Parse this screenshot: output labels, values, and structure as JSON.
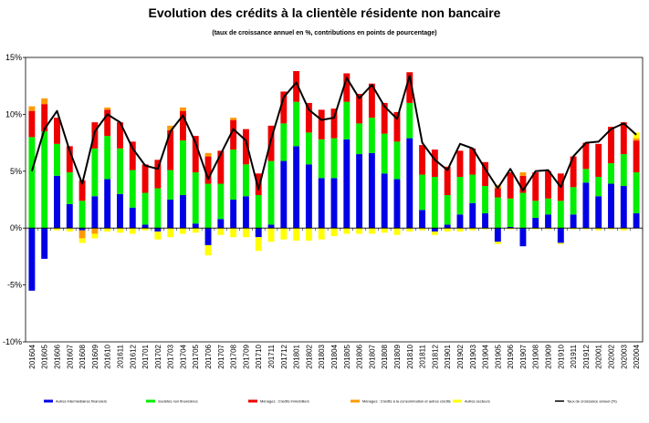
{
  "chart_data": {
    "type": "bar",
    "stacked": true,
    "title": "Evolution  des crédits à la clientèle résidente non bancaire",
    "subtitle": "(taux de croissance annuel en %, contributions en points de pourcentage)",
    "ylim": [
      -10,
      15
    ],
    "yticks": [
      "-10%",
      "-5%",
      "0%",
      "5%",
      "10%",
      "15%"
    ],
    "ytick_values": [
      -10,
      -5,
      0,
      5,
      10,
      15
    ],
    "grid": false,
    "legend_position": "bottom",
    "categories": [
      "201604",
      "201605",
      "201606",
      "201607",
      "201608",
      "201609",
      "201610",
      "201611",
      "201612",
      "201701",
      "201702",
      "201703",
      "201704",
      "201705",
      "201706",
      "201707",
      "201708",
      "201709",
      "201710",
      "201711",
      "201712",
      "201801",
      "201802",
      "201803",
      "201804",
      "201805",
      "201806",
      "201807",
      "201808",
      "201809",
      "201810",
      "201811",
      "201812",
      "201901",
      "201902",
      "201903",
      "201904",
      "201905",
      "201906",
      "201907",
      "201908",
      "201909",
      "201910",
      "201911",
      "201912",
      "202001",
      "202002",
      "202003",
      "202004"
    ],
    "series": [
      {
        "name": "Autres intermédiaires financiers",
        "color": "#0000e6",
        "kind": "bar",
        "values": [
          -5.5,
          -2.7,
          4.6,
          2.1,
          -0.2,
          2.8,
          4.3,
          3.0,
          1.8,
          0.3,
          -0.3,
          2.5,
          2.9,
          0.4,
          -1.5,
          0.8,
          2.5,
          2.8,
          -0.8,
          0.3,
          5.9,
          7.2,
          5.6,
          4.4,
          4.4,
          7.8,
          6.5,
          6.6,
          4.8,
          4.3,
          7.9,
          1.6,
          -0.3,
          0.3,
          1.2,
          2.2,
          1.3,
          -1.2,
          0.1,
          -1.6,
          0.9,
          1.2,
          -1.3,
          1.2,
          4.0,
          2.8,
          3.9,
          3.7,
          1.3
        ]
      },
      {
        "name": "Sociétés non financières",
        "color": "#00ee00",
        "kind": "bar",
        "values": [
          8.0,
          8.5,
          2.8,
          2.8,
          2.4,
          4.2,
          3.8,
          4.0,
          3.3,
          2.8,
          3.5,
          2.6,
          4.8,
          4.5,
          3.9,
          3.1,
          4.4,
          2.8,
          2.9,
          5.6,
          3.3,
          3.9,
          2.8,
          3.4,
          3.5,
          3.3,
          2.7,
          3.1,
          3.5,
          3.3,
          3.1,
          3.1,
          4.5,
          2.6,
          3.3,
          2.5,
          2.4,
          2.7,
          2.5,
          3.1,
          1.5,
          1.4,
          2.4,
          2.4,
          1.2,
          1.7,
          1.8,
          2.8,
          3.6
        ]
      },
      {
        "name": "Ménages : Crédits immobiliers",
        "color": "#ee0000",
        "kind": "bar",
        "values": [
          2.3,
          2.4,
          2.3,
          2.3,
          1.8,
          2.3,
          2.3,
          2.3,
          2.5,
          2.5,
          2.5,
          3.5,
          2.6,
          3.2,
          2.4,
          2.9,
          2.6,
          3.1,
          1.9,
          3.1,
          2.8,
          2.7,
          2.6,
          2.6,
          2.6,
          2.5,
          2.6,
          3.0,
          2.7,
          2.6,
          2.7,
          2.6,
          2.4,
          2.5,
          2.3,
          2.3,
          2.1,
          0.8,
          2.3,
          1.5,
          2.5,
          2.4,
          2.4,
          2.7,
          2.3,
          2.9,
          3.2,
          2.8,
          2.8
        ]
      },
      {
        "name": "Ménages : Crédits à la consommation et autres crédits",
        "color": "#ff9900",
        "kind": "bar",
        "values": [
          0.4,
          0.5,
          0,
          0,
          -0.7,
          -0.5,
          0.2,
          0,
          0,
          0,
          0,
          0.4,
          0.3,
          0,
          0.3,
          0,
          0.2,
          0,
          0,
          0,
          0,
          0,
          0,
          0,
          0,
          0,
          0,
          0,
          0,
          0,
          0,
          0,
          0,
          0,
          0,
          0,
          0,
          0.3,
          0,
          0.3,
          0,
          0,
          0,
          0,
          0,
          0,
          0,
          0,
          0.2
        ]
      },
      {
        "name": "Autres secteurs",
        "color": "#ffff00",
        "kind": "bar",
        "values": [
          0,
          0,
          -0.2,
          -0.3,
          -0.4,
          -0.4,
          -0.3,
          -0.4,
          -0.5,
          -0.2,
          -0.7,
          -0.8,
          -0.5,
          -0.4,
          -0.9,
          -0.6,
          -0.8,
          -0.8,
          -1.2,
          -1.2,
          -1.0,
          -1.1,
          -1.1,
          -1.0,
          -0.7,
          -0.5,
          -0.5,
          -0.5,
          -0.4,
          -0.6,
          -0.3,
          -0.2,
          -0.3,
          -0.3,
          -0.3,
          -0.2,
          -0.1,
          -0.2,
          -0.1,
          0,
          -0.1,
          -0.1,
          -0.1,
          -0.1,
          -0.1,
          -0.2,
          -0.1,
          -0.2,
          0.5
        ]
      },
      {
        "name": "Taux de croissance annuel (%)",
        "color": "#000000",
        "kind": "line",
        "values": [
          5.0,
          8.7,
          10.3,
          6.8,
          3.9,
          8.5,
          10.0,
          9.3,
          7.0,
          5.5,
          5.2,
          8.5,
          9.9,
          7.5,
          4.3,
          6.5,
          8.7,
          7.7,
          3.4,
          7.8,
          11.5,
          12.8,
          10.4,
          9.5,
          9.7,
          13.2,
          11.4,
          12.6,
          10.7,
          9.6,
          13.4,
          7.5,
          6.0,
          5.1,
          7.4,
          7.0,
          5.2,
          3.5,
          5.2,
          3.3,
          5.0,
          5.1,
          3.6,
          6.3,
          7.5,
          7.6,
          8.7,
          9.2,
          8.2
        ]
      }
    ]
  }
}
